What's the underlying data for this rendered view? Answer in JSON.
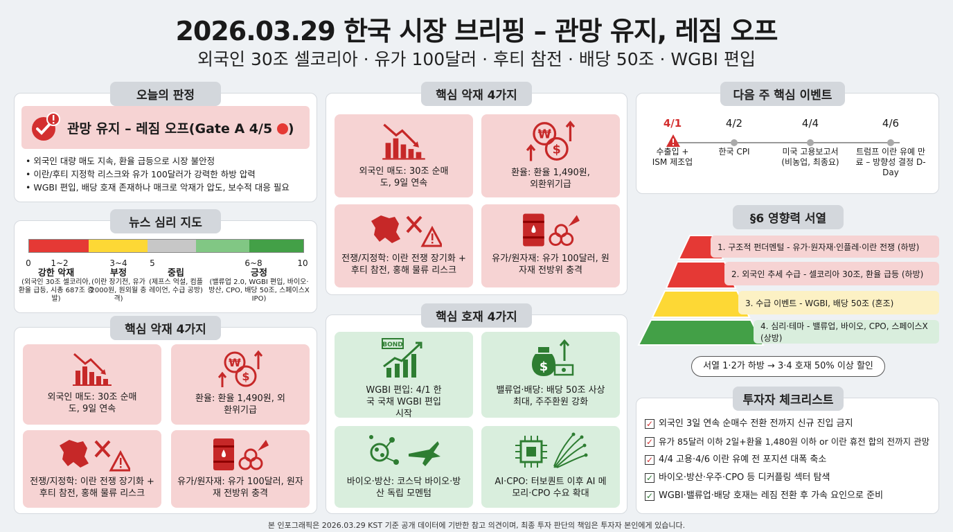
{
  "header": {
    "title": "2026.03.29 한국 시장 브리핑 – 관망 유지, 레짐 오프",
    "subtitle": "외국인 30조 셀코리아 · 유가 100달러 · 후티 참전 · 배당 50조 · WGBI 편입"
  },
  "verdict": {
    "chip": "오늘의 판정",
    "headline": "관망 유지 – 레짐 오프(Gate A 4/5",
    "headline_end": ")",
    "bullets": [
      "외국인 대량 매도 지속, 환율 급등으로 시장 불안정",
      "이란/후티 지정학 리스크와 유가 100달러가 강력한 하방 압력",
      "WGBI 편입, 배당 호재 존재하나 매크로 악재가 압도, 보수적 대응 필요"
    ]
  },
  "sentiment": {
    "chip": "뉴스 심리 지도",
    "colors": [
      "#e53935",
      "#fdd835",
      "#c7c7c7",
      "#81c784",
      "#43a047"
    ],
    "ticks": [
      "0",
      "1~2",
      "3~4",
      "5",
      "6~8",
      "10"
    ],
    "groups": [
      {
        "name": "강한 악재",
        "desc": "(외국인 30조 셀코리아, 환율 급등, 시총 687조 증발)"
      },
      {
        "name": "부정",
        "desc": "(이란 장기전, 유가 2000원, 원외월 충격)"
      },
      {
        "name": "중립",
        "desc": "(제프스 억설, 컴플레이언, 수급 공방)"
      },
      {
        "name": "긍정",
        "desc": "(밸류업 2.0, WGBI 편입, 바이오·방산, CPO, 배당 50조, 스페이스X IPO)"
      }
    ]
  },
  "neg_left": {
    "chip": "핵심 악재 4가지",
    "cards": [
      {
        "icon": "falling-chart-icon",
        "text": "외국인 매도: 30조 순매도, 9일 연속"
      },
      {
        "icon": "won-dollar-icon",
        "text": "환율: 환율 1,490원, 외환위기급"
      },
      {
        "icon": "war-map-icon",
        "text": "전쟁/지정학: 이란 전쟁 장기화 + 후티 참전, 홍해 물류 리스크"
      },
      {
        "icon": "oil-barrel-icon",
        "text": "유가/원자재: 유가 100달러, 원자재 전방위 충격"
      }
    ]
  },
  "neg_center": {
    "chip": "핵심 악재 4가지",
    "cards": [
      {
        "icon": "falling-chart-icon",
        "text": "외국인 매도: 30조 순매도, 9일 연속"
      },
      {
        "icon": "won-dollar-icon",
        "text": "환율: 환율 1,490원, 외환위기급"
      },
      {
        "icon": "war-map-icon",
        "text": "전쟁/지정학: 이란 전쟁 장기화 + 후티 참전, 홍해 물류 리스크"
      },
      {
        "icon": "oil-barrel-icon",
        "text": "유가/원자재: 유가 100달러, 원자재 전방위 충격"
      }
    ]
  },
  "positives": {
    "chip": "핵심 호재 4가지",
    "cards": [
      {
        "icon": "bond-chart-icon",
        "badge": "BOND",
        "text": "WGBI 편입: 4/1 한국 국채 WGBI 편입 시작"
      },
      {
        "icon": "money-bag-icon",
        "text": "밸류업·배당: 배당 50조 사상 최대, 주주환원 강화"
      },
      {
        "icon": "molecule-jet-icon",
        "text": "바이오·방산: 코스닥 바이오·방산 독립 모멘텀"
      },
      {
        "icon": "chip-fiber-icon",
        "text": "AI·CPO: 터보퀀트 이후 AI 메모리·CPO 수요 확대"
      }
    ]
  },
  "events": {
    "chip": "다음 주 핵심 이벤트",
    "items": [
      {
        "date": "4/1",
        "desc": "수출입 + ISM 제조업"
      },
      {
        "date": "4/2",
        "desc": "한국 CPI"
      },
      {
        "date": "4/4",
        "desc": "미국 고용보고서(비농업, 최종요)"
      },
      {
        "date": "4/6",
        "desc": "트럼프 이란 유예 만료 – 방향성 결정 D-Day"
      }
    ]
  },
  "hierarchy": {
    "chip": "§6 영향력 서열",
    "levels": [
      {
        "text": "1. 구조적 펀더멘털 - 유가·원자재·인플레·이란 전쟁 (하방)",
        "color": "#e53935",
        "bg": "#f6d3d3"
      },
      {
        "text": "2. 외국인 추세 수급 - 셀코리아 30조, 환율 급등 (하방)",
        "color": "#e53935",
        "bg": "#f6d3d3"
      },
      {
        "text": "3. 수급 이벤트 - WGBI, 배당 50조 (혼조)",
        "color": "#fdd835",
        "bg": "#fcf1c4"
      },
      {
        "text": "4. 심리·테마 - 밸류업, 바이오, CPO, 스페이스X (상방)",
        "color": "#43a047",
        "bg": "#d9eedd"
      }
    ],
    "note": "서열 1·2가 하방 → 3·4 호재 50% 이상 할인"
  },
  "checklist": {
    "chip": "투자자 체크리스트",
    "items": [
      {
        "text": "외국인 3일 연속 순매수 전환 전까지 신규 진입 금지",
        "mark": "✓",
        "color": "#d32f2f"
      },
      {
        "text": "유가 85달러 이하 2일+환율 1,480원 이하 or 이란 휴전 합의 전까지 관망",
        "mark": "✓",
        "color": "#d32f2f"
      },
      {
        "text": "4/4 고용·4/6 이란 유예 전 포지션 대폭 축소",
        "mark": "✓",
        "color": "#d32f2f"
      },
      {
        "text": "바이오·방산·우주·CPO 등 디커플링 섹터 탐색",
        "mark": "✓",
        "color": "#2e7d32"
      },
      {
        "text": "WGBI·밸류업·배당 호재는 레짐 전환 후 가속 요인으로 준비",
        "mark": "✓",
        "color": "#2e7d32"
      }
    ]
  },
  "footer": "본 인포그래픽은 2026.03.29 KST 기준 공개 데이터에 기반한 참고 의견이며, 최종 투자 판단의 책임은 투자자 본인에게 있습니다."
}
